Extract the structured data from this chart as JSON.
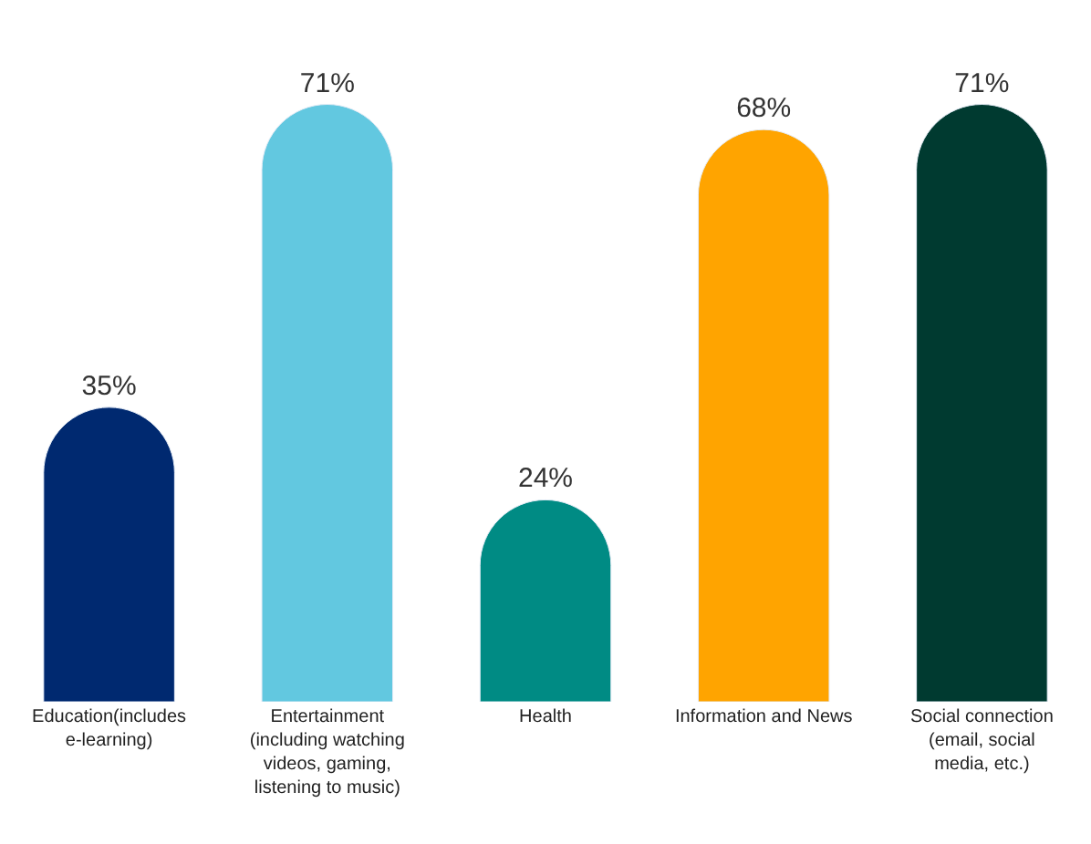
{
  "chart_data": {
    "type": "bar",
    "categories": [
      "Education(includes e-learning)",
      "Entertainment (including watching videos, gaming, listening to music)",
      "Health",
      "Information and News",
      "Social connection (email, social media, etc.)"
    ],
    "values": [
      35,
      71,
      24,
      68,
      71
    ],
    "value_labels": [
      "35%",
      "71%",
      "24%",
      "68%",
      "71%"
    ],
    "colors": [
      "#002970",
      "#62c8e0",
      "#008b84",
      "#ffa400",
      "#003a30"
    ]
  }
}
